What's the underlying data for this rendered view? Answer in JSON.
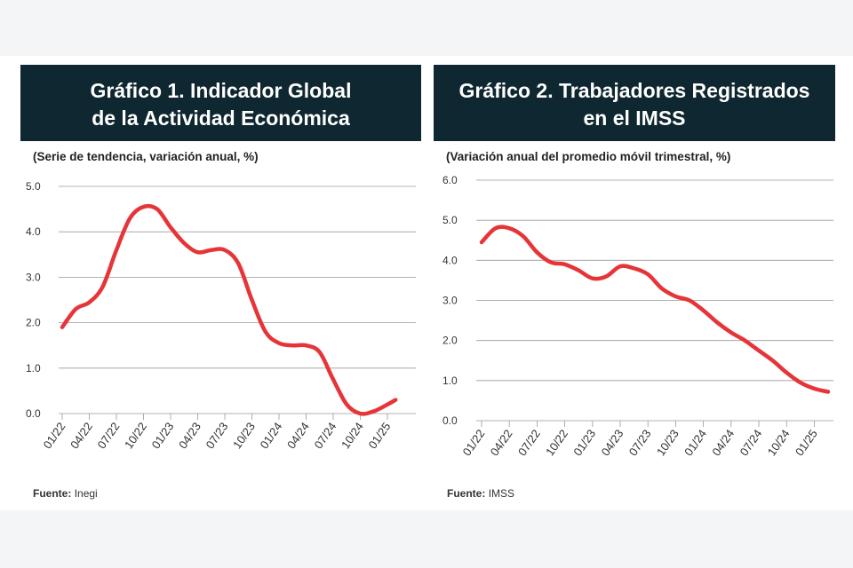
{
  "accent": "#e63538",
  "header_bg": "#0f2730",
  "chart_data": [
    {
      "type": "line",
      "title_line1": "Gráfico 1. Indicador Global",
      "title_line2": "de la Actividad Económica",
      "subtitle": "(Serie de tendencia, variación anual, %)",
      "source_label": "Fuente:",
      "source_name": "Inegi",
      "ylim": [
        0,
        5
      ],
      "yticks": [
        "0.0",
        "1.0",
        "2.0",
        "3.0",
        "4.0",
        "5.0"
      ],
      "categories": [
        "01/22",
        "04/22",
        "07/22",
        "10/22",
        "01/23",
        "04/23",
        "07/23",
        "10/23",
        "01/24",
        "04/24",
        "07/24",
        "10/24",
        "01/25"
      ],
      "x": [
        0,
        0.5,
        1,
        1.5,
        2,
        2.5,
        3,
        3.5,
        4,
        4.5,
        5,
        5.5,
        6,
        6.5,
        7,
        7.5,
        8,
        8.5,
        9,
        9.5,
        10,
        10.5,
        11,
        11.5,
        12,
        12.3
      ],
      "values": [
        1.9,
        2.3,
        2.45,
        2.8,
        3.6,
        4.3,
        4.55,
        4.5,
        4.1,
        3.75,
        3.55,
        3.6,
        3.6,
        3.3,
        2.5,
        1.8,
        1.55,
        1.5,
        1.5,
        1.35,
        0.75,
        0.2,
        0.0,
        0.05,
        0.2,
        0.3
      ]
    },
    {
      "type": "line",
      "title_line1": "Gráfico 2. Trabajadores Registrados",
      "title_line2": "en el IMSS",
      "subtitle": "(Variación anual del promedio móvil trimestral, %)",
      "source_label": "Fuente:",
      "source_name": "IMSS",
      "ylim": [
        0,
        6
      ],
      "yticks": [
        "0.0",
        "1.0",
        "2.0",
        "3.0",
        "4.0",
        "5.0",
        "6.0"
      ],
      "categories": [
        "01/22",
        "04/22",
        "07/22",
        "10/22",
        "01/23",
        "04/23",
        "07/23",
        "10/23",
        "01/24",
        "04/24",
        "07/24",
        "10/24",
        "01/25"
      ],
      "x": [
        0,
        0.5,
        1,
        1.5,
        2,
        2.5,
        3,
        3.5,
        4,
        4.5,
        5,
        5.5,
        6,
        6.5,
        7,
        7.5,
        8,
        8.5,
        9,
        9.5,
        10,
        10.5,
        11,
        11.5,
        12,
        12.5
      ],
      "values": [
        4.45,
        4.8,
        4.8,
        4.6,
        4.2,
        3.95,
        3.9,
        3.75,
        3.55,
        3.6,
        3.85,
        3.8,
        3.65,
        3.3,
        3.1,
        3.0,
        2.75,
        2.45,
        2.2,
        2.0,
        1.75,
        1.5,
        1.2,
        0.95,
        0.8,
        0.72
      ]
    }
  ]
}
